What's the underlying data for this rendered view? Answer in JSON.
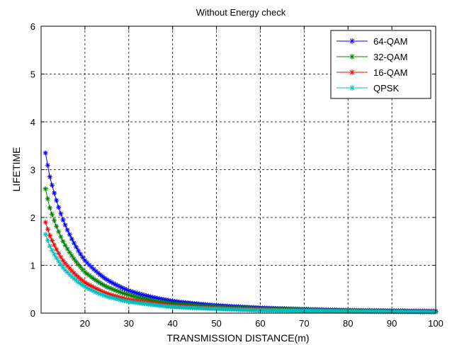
{
  "chart_data": {
    "type": "line",
    "title": "Without Energy check",
    "xlabel": "TRANSMISSION DISTANCE(m)",
    "ylabel": "LIFETIME",
    "xlim": [
      10,
      100
    ],
    "ylim": [
      0,
      6
    ],
    "xticks": [
      20,
      30,
      40,
      50,
      60,
      70,
      80,
      90,
      100
    ],
    "yticks": [
      0,
      1,
      2,
      3,
      4,
      5,
      6
    ],
    "grid": true,
    "legend_position": "top-right",
    "marker": "asterisk",
    "x_start": 11,
    "x_end": 100,
    "x_step": 0.5,
    "series": [
      {
        "name": "64-QAM",
        "color": "#0000ff",
        "anchors": [
          [
            11,
            3.35
          ],
          [
            12,
            2.85
          ],
          [
            15,
            1.95
          ],
          [
            20,
            1.1
          ],
          [
            25,
            0.7
          ],
          [
            30,
            0.47
          ],
          [
            35,
            0.34
          ],
          [
            40,
            0.25
          ],
          [
            50,
            0.16
          ],
          [
            60,
            0.11
          ],
          [
            70,
            0.08
          ],
          [
            80,
            0.06
          ],
          [
            90,
            0.05
          ],
          [
            100,
            0.04
          ]
        ]
      },
      {
        "name": "32-QAM",
        "color": "#008000",
        "anchors": [
          [
            11,
            2.6
          ],
          [
            12,
            2.2
          ],
          [
            15,
            1.5
          ],
          [
            20,
            0.86
          ],
          [
            25,
            0.55
          ],
          [
            30,
            0.38
          ],
          [
            35,
            0.27
          ],
          [
            40,
            0.2
          ],
          [
            50,
            0.13
          ],
          [
            60,
            0.09
          ],
          [
            70,
            0.07
          ],
          [
            80,
            0.05
          ],
          [
            90,
            0.04
          ],
          [
            100,
            0.03
          ]
        ]
      },
      {
        "name": "16-QAM",
        "color": "#ff0000",
        "anchors": [
          [
            11,
            1.9
          ],
          [
            12,
            1.62
          ],
          [
            15,
            1.1
          ],
          [
            20,
            0.64
          ],
          [
            25,
            0.41
          ],
          [
            30,
            0.28
          ],
          [
            35,
            0.21
          ],
          [
            40,
            0.15
          ],
          [
            50,
            0.1
          ],
          [
            60,
            0.07
          ],
          [
            70,
            0.05
          ],
          [
            80,
            0.04
          ],
          [
            90,
            0.03
          ],
          [
            100,
            0.03
          ]
        ]
      },
      {
        "name": "QPSK",
        "color": "#00bfbf",
        "anchors": [
          [
            11,
            1.65
          ],
          [
            12,
            1.4
          ],
          [
            15,
            0.95
          ],
          [
            20,
            0.55
          ],
          [
            25,
            0.35
          ],
          [
            30,
            0.24
          ],
          [
            35,
            0.18
          ],
          [
            40,
            0.13
          ],
          [
            50,
            0.09
          ],
          [
            60,
            0.06
          ],
          [
            70,
            0.05
          ],
          [
            80,
            0.04
          ],
          [
            90,
            0.03
          ],
          [
            100,
            0.02
          ]
        ]
      }
    ]
  }
}
